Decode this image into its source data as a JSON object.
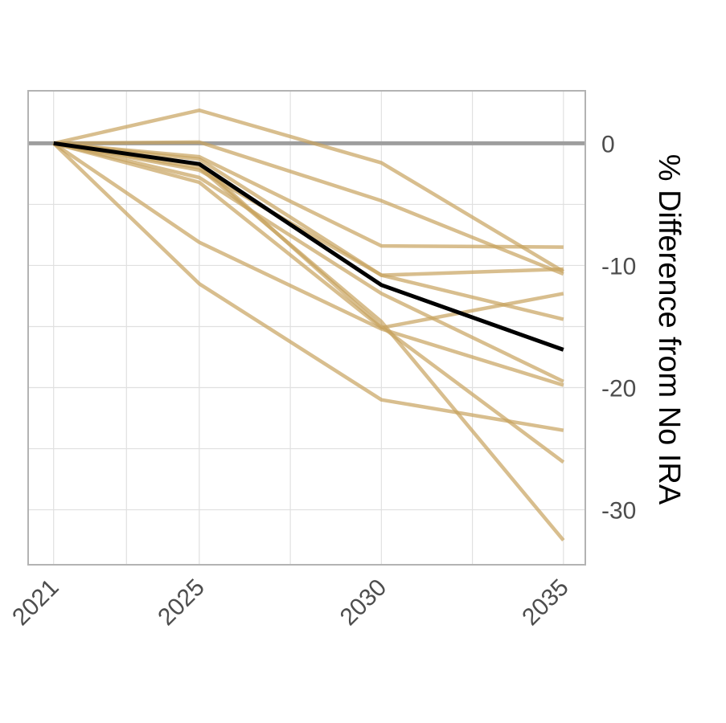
{
  "chart_data": {
    "type": "line",
    "title": "",
    "xlabel": "",
    "ylabel": "% Difference from No IRA",
    "x": [
      2021,
      2025,
      2030,
      2035
    ],
    "xlim": [
      2020.3,
      2035.6
    ],
    "ylim": [
      -34.5,
      4.3
    ],
    "x_ticks": [
      2021,
      2025,
      2030,
      2035
    ],
    "y_ticks": [
      0,
      -10,
      -20,
      -30
    ],
    "y_axis_side": "right",
    "grid": true,
    "legend": "none",
    "reference_line": 0,
    "series": [
      {
        "values": [
          0,
          2.7,
          -1.6,
          -10.5
        ],
        "role": "model"
      },
      {
        "values": [
          0,
          0.1,
          -4.7,
          -10.7
        ],
        "role": "model"
      },
      {
        "values": [
          0,
          -1.1,
          -8.4,
          -8.5
        ],
        "role": "model"
      },
      {
        "values": [
          0,
          -1.3,
          -10.8,
          -10.3
        ],
        "role": "model"
      },
      {
        "values": [
          0,
          -2.2,
          -10.8,
          -14.4
        ],
        "role": "model"
      },
      {
        "values": [
          0,
          -2.8,
          -12.3,
          -19.5
        ],
        "role": "model"
      },
      {
        "values": [
          0,
          -3.2,
          -15.1,
          -12.3
        ],
        "role": "model"
      },
      {
        "values": [
          0,
          -1.7,
          -15.0,
          -26.1
        ],
        "role": "model"
      },
      {
        "values": [
          0,
          -8.1,
          -15.2,
          -19.8
        ],
        "role": "model"
      },
      {
        "values": [
          0,
          -11.5,
          -21.0,
          -23.5
        ],
        "role": "model"
      },
      {
        "values": [
          0,
          -2.0,
          -14.6,
          -32.5
        ],
        "role": "model"
      },
      {
        "values": [
          0,
          -1.7,
          -11.6,
          -16.9
        ],
        "role": "median"
      }
    ],
    "colors": {
      "model": "#c8a35e",
      "median": "#000000",
      "reference": "#9e9e9e",
      "grid": "#e0e0e0",
      "border": "#b3b3b3",
      "tick_text": "#4d4d4d"
    }
  }
}
